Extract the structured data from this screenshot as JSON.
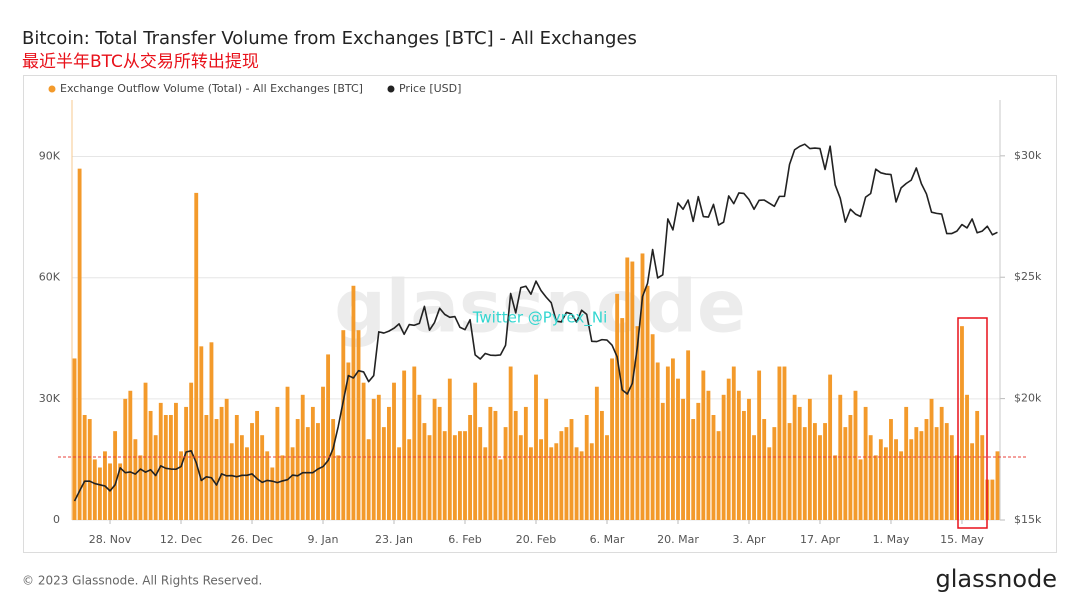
{
  "chart_data": {
    "type": "combo",
    "title": "Bitcoin: Total Transfer Volume from Exchanges [BTC] - All Exchanges",
    "subtitle": "最近半年BTC从交易所转出提现",
    "watermark": "glassnode",
    "annotation": "Twitter @Pyrex_Ni",
    "footer": "© 2023 Glassnode. All Rights Reserved.",
    "logo": "glassnode",
    "xlim": [
      -0.5,
      182.5
    ],
    "xticks": [
      {
        "value": 7,
        "label": "28. Nov"
      },
      {
        "value": 21,
        "label": "12. Dec"
      },
      {
        "value": 35,
        "label": "26. Dec"
      },
      {
        "value": 49,
        "label": "9. Jan"
      },
      {
        "value": 63,
        "label": "23. Jan"
      },
      {
        "value": 77,
        "label": "6. Feb"
      },
      {
        "value": 91,
        "label": "20. Feb"
      },
      {
        "value": 105,
        "label": "6. Mar"
      },
      {
        "value": 119,
        "label": "20. Mar"
      },
      {
        "value": 133,
        "label": "3. Apr"
      },
      {
        "value": 147,
        "label": "17. Apr"
      },
      {
        "value": 161,
        "label": "1. May"
      },
      {
        "value": 175,
        "label": "15. May"
      }
    ],
    "ylim": [
      0,
      104000
    ],
    "yticks": [
      {
        "value": 0,
        "label": "0"
      },
      {
        "value": 30000,
        "label": "30K"
      },
      {
        "value": 60000,
        "label": "60K"
      },
      {
        "value": 90000,
        "label": "90K"
      }
    ],
    "y2lim": [
      15000,
      32300
    ],
    "y2ticks": [
      {
        "value": 15000,
        "label": "$15k"
      },
      {
        "value": 20000,
        "label": "$20k"
      },
      {
        "value": 25000,
        "label": "$25k"
      },
      {
        "value": 30000,
        "label": "$30k"
      }
    ],
    "grid": true,
    "reference_line": {
      "value": 15600,
      "color": "#e8413b"
    },
    "series": [
      {
        "name": "Exchange Outflow Volume (Total) - All Exchanges [BTC]",
        "type": "bar",
        "color": "#f39a2b",
        "values": [
          40000,
          87000,
          26000,
          25000,
          15000,
          13000,
          17000,
          14000,
          22000,
          14000,
          30000,
          32000,
          20000,
          16000,
          34000,
          27000,
          21000,
          29000,
          26000,
          26000,
          29000,
          17000,
          28000,
          34000,
          81000,
          43000,
          26000,
          44000,
          25000,
          28000,
          30000,
          19000,
          26000,
          21000,
          18000,
          24000,
          27000,
          21000,
          17000,
          13000,
          28000,
          16000,
          33000,
          18000,
          25000,
          31000,
          23000,
          28000,
          24000,
          33000,
          41000,
          25000,
          16000,
          47000,
          39000,
          58000,
          47000,
          34000,
          20000,
          30000,
          31000,
          23000,
          28000,
          34000,
          18000,
          37000,
          20000,
          38000,
          31000,
          24000,
          21000,
          30000,
          28000,
          22000,
          35000,
          21000,
          22000,
          22000,
          26000,
          34000,
          23000,
          18000,
          28000,
          27000,
          15000,
          23000,
          38000,
          27000,
          21000,
          28000,
          18000,
          36000,
          20000,
          30000,
          18000,
          19000,
          22000,
          23000,
          25000,
          18000,
          17000,
          26000,
          19000,
          33000,
          27000,
          21000,
          40000,
          56000,
          50000,
          65000,
          64000,
          48000,
          66000,
          58000,
          46000,
          39000,
          29000,
          38000,
          40000,
          35000,
          30000,
          42000,
          25000,
          29000,
          37000,
          32000,
          26000,
          22000,
          31000,
          35000,
          38000,
          32000,
          27000,
          30000,
          21000,
          37000,
          25000,
          18000,
          23000,
          38000,
          38000,
          24000,
          31000,
          28000,
          23000,
          30000,
          24000,
          21000,
          24000,
          36000,
          16000,
          31000,
          23000,
          26000,
          32000,
          15000,
          28000,
          21000,
          16000,
          20000,
          18000,
          25000,
          20000,
          17000,
          28000,
          20000,
          23000,
          22000,
          25000,
          30000,
          23000,
          28000,
          24000,
          21000,
          16000,
          48000,
          31000,
          19000,
          27000,
          21000,
          10000,
          10000,
          17000
        ]
      },
      {
        "name": "Price [USD]",
        "type": "line",
        "axis": "y2",
        "color": "#222222",
        "values": [
          15780,
          16200,
          16600,
          16600,
          16500,
          16450,
          16400,
          16200,
          16450,
          17150,
          16950,
          16980,
          16890,
          17100,
          16970,
          17070,
          16830,
          17230,
          17130,
          17100,
          17090,
          17200,
          17800,
          17850,
          17360,
          16630,
          16780,
          16740,
          16440,
          16900,
          16820,
          16830,
          16780,
          16840,
          16840,
          16900,
          16700,
          16550,
          16630,
          16600,
          16540,
          16610,
          16660,
          16850,
          16820,
          16950,
          16950,
          16950,
          17100,
          17200,
          17450,
          17950,
          18850,
          19900,
          20950,
          20850,
          21150,
          21100,
          20700,
          20950,
          22750,
          22700,
          22780,
          22900,
          23080,
          22650,
          23050,
          23020,
          23100,
          23800,
          22820,
          23140,
          23720,
          23470,
          23350,
          23380,
          22940,
          22840,
          23250,
          21800,
          21630,
          21860,
          21790,
          21780,
          21800,
          22200,
          24330,
          23530,
          24570,
          24630,
          24300,
          24840,
          24450,
          24180,
          23950,
          23190,
          23160,
          23550,
          23490,
          23150,
          23640,
          23470,
          22360,
          22350,
          22430,
          22410,
          22200,
          21720,
          20360,
          20190,
          20630,
          22140,
          24200,
          24750,
          26140,
          24970,
          25100,
          27400,
          26950,
          28060,
          27800,
          28180,
          27300,
          28320,
          27500,
          27480,
          28000,
          27150,
          27270,
          28350,
          28030,
          28470,
          28450,
          28200,
          27800,
          28170,
          28180,
          28050,
          27920,
          28330,
          28330,
          29650,
          30250,
          30390,
          30480,
          30300,
          30320,
          30300,
          29440,
          30400,
          28800,
          28250,
          27270,
          27800,
          27600,
          27500,
          28300,
          28450,
          29450,
          29300,
          29250,
          29230,
          28100,
          28680,
          28860,
          29000,
          29500,
          28850,
          28430,
          27680,
          27630,
          27600,
          26800,
          26800,
          26900,
          27170,
          27030,
          27400,
          26830,
          26900,
          27100,
          26750,
          26850
        ]
      }
    ]
  }
}
